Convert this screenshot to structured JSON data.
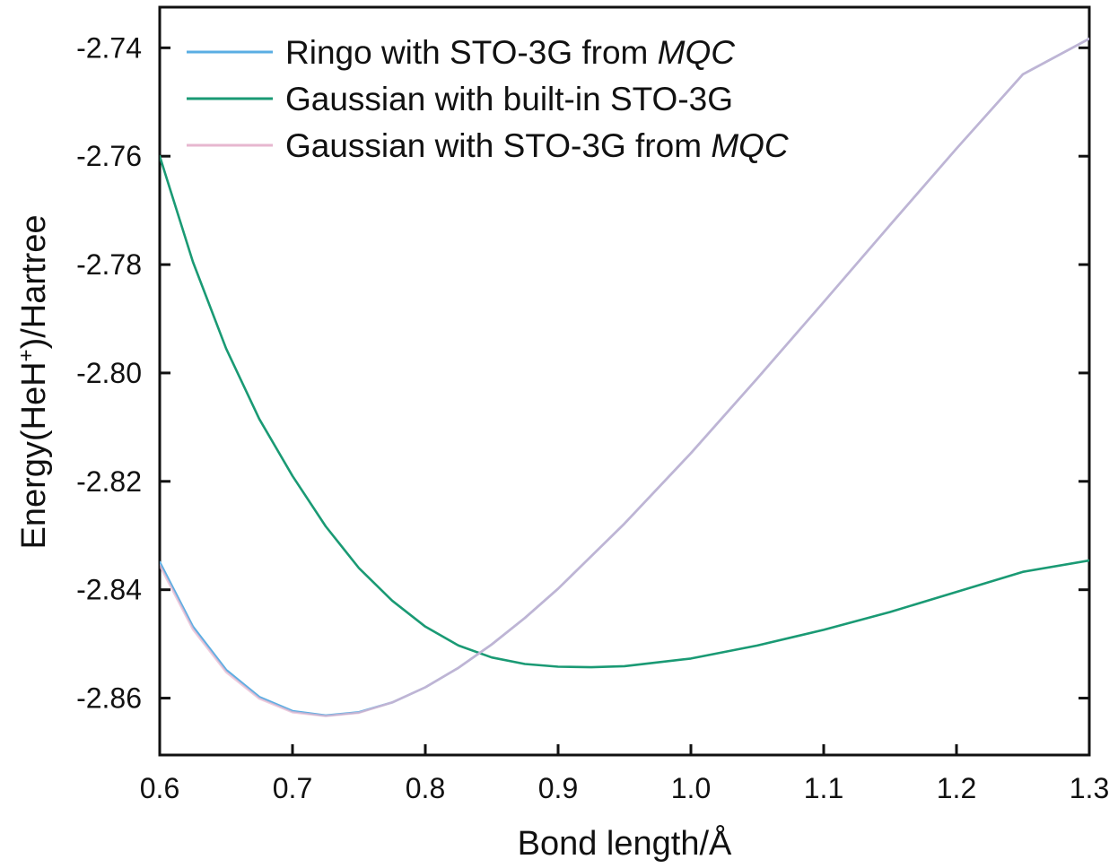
{
  "chart_data": {
    "type": "line",
    "title": "",
    "xlabel": "Bond length/Å",
    "ylabel": {
      "prefix": "Energy(HeH",
      "superscript": "+",
      "suffix": ")/Hartree"
    },
    "xlim": [
      0.6,
      1.3
    ],
    "ylim": [
      -2.8705,
      -2.7325
    ],
    "x_ticks": [
      0.6,
      0.7,
      0.8,
      0.9,
      1.0,
      1.1,
      1.2,
      1.3
    ],
    "x_tick_labels": [
      "0.6",
      "0.7",
      "0.8",
      "0.9",
      "1.0",
      "1.1",
      "1.2",
      "1.3"
    ],
    "y_ticks": [
      -2.86,
      -2.84,
      -2.82,
      -2.8,
      -2.78,
      -2.76,
      -2.74
    ],
    "y_tick_labels": [
      "-2.86",
      "-2.84",
      "-2.82",
      "-2.80",
      "-2.78",
      "-2.76",
      "-2.74"
    ],
    "grid": false,
    "legend_position": "top-left",
    "series": [
      {
        "name": {
          "text": "Ringo with STO-3G from ",
          "italic": "MQC"
        },
        "color": "#5aaee3",
        "x": [
          0.6,
          0.625,
          0.65,
          0.675,
          0.7,
          0.725,
          0.75,
          0.775,
          0.8,
          0.825,
          0.85,
          0.875,
          0.9,
          0.95,
          1.0,
          1.05,
          1.1,
          1.15,
          1.2,
          1.25,
          1.3
        ],
        "y": [
          -2.8349,
          -2.8468,
          -2.8548,
          -2.8598,
          -2.8624,
          -2.8632,
          -2.8626,
          -2.8608,
          -2.858,
          -2.8544,
          -2.8501,
          -2.8452,
          -2.8398,
          -2.8278,
          -2.8148,
          -2.801,
          -2.7869,
          -2.7727,
          -2.7586,
          -2.7449,
          -2.7383
        ]
      },
      {
        "name": {
          "text": "Gaussian with built-in STO-3G",
          "italic": ""
        },
        "color": "#1a9a74",
        "x": [
          0.6,
          0.625,
          0.65,
          0.675,
          0.7,
          0.725,
          0.75,
          0.775,
          0.8,
          0.825,
          0.85,
          0.875,
          0.9,
          0.925,
          0.95,
          1.0,
          1.05,
          1.1,
          1.15,
          1.2,
          1.25,
          1.3
        ],
        "y": [
          -2.76,
          -2.7795,
          -2.7955,
          -2.8085,
          -2.819,
          -2.8283,
          -2.836,
          -2.842,
          -2.8468,
          -2.8503,
          -2.8525,
          -2.8537,
          -2.8542,
          -2.8543,
          -2.8541,
          -2.8527,
          -2.8503,
          -2.8474,
          -2.8441,
          -2.8404,
          -2.8367,
          -2.8346
        ]
      },
      {
        "name": {
          "text": "Gaussian with STO-3G from ",
          "italic": "MQC"
        },
        "color": "#e7b7cf",
        "x": [
          0.6,
          0.625,
          0.65,
          0.675,
          0.7,
          0.725,
          0.75,
          0.775,
          0.8,
          0.825,
          0.85,
          0.875,
          0.9,
          0.95,
          1.0,
          1.05,
          1.1,
          1.15,
          1.2,
          1.25,
          1.3
        ],
        "y": [
          -2.8355,
          -2.8473,
          -2.8552,
          -2.8601,
          -2.8626,
          -2.8633,
          -2.8627,
          -2.8608,
          -2.858,
          -2.8544,
          -2.8501,
          -2.8452,
          -2.8398,
          -2.8278,
          -2.8148,
          -2.801,
          -2.7869,
          -2.7727,
          -2.7586,
          -2.7449,
          -2.7383
        ]
      }
    ]
  }
}
